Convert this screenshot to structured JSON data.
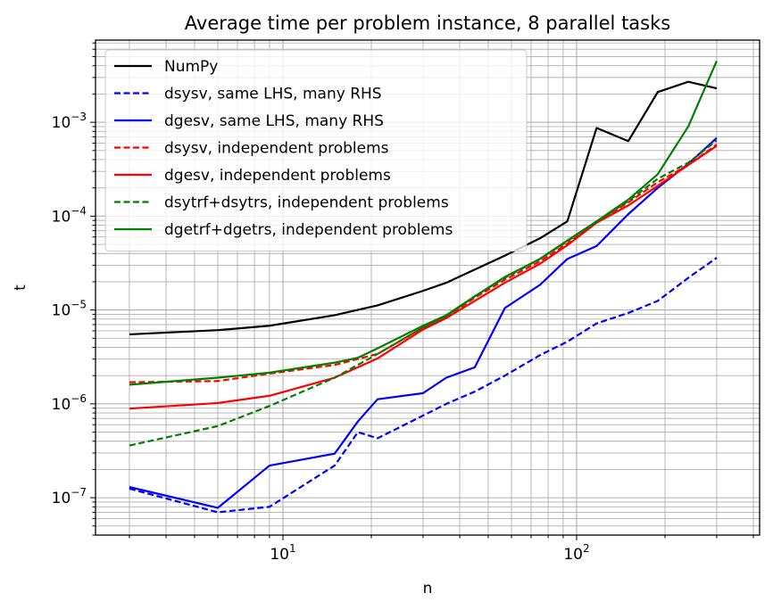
{
  "chart_data": {
    "type": "line",
    "title": "Average time per problem instance, 8 parallel tasks",
    "xlabel": "n",
    "ylabel": "t",
    "xscale": "log",
    "yscale": "log",
    "xlim": [
      2.3,
      420
    ],
    "ylim": [
      4e-08,
      0.0075
    ],
    "grid": "major and minor",
    "legend_position": "top-left",
    "x_ticks": [
      {
        "value": 10,
        "base": "10",
        "exp": "1"
      },
      {
        "value": 100,
        "base": "10",
        "exp": "2"
      }
    ],
    "y_ticks": [
      {
        "value": 1e-07,
        "base": "10",
        "exp": "−7"
      },
      {
        "value": 1e-06,
        "base": "10",
        "exp": "−6"
      },
      {
        "value": 1e-05,
        "base": "10",
        "exp": "−5"
      },
      {
        "value": 0.0001,
        "base": "10",
        "exp": "−4"
      },
      {
        "value": 0.001,
        "base": "10",
        "exp": "−3"
      }
    ],
    "series": [
      {
        "name": "NumPy",
        "color": "#000000",
        "dash": "solid",
        "points": [
          [
            3,
            5.5e-06
          ],
          [
            6,
            6.1e-06
          ],
          [
            9,
            6.8e-06
          ],
          [
            15,
            8.8e-06
          ],
          [
            21,
            1.12e-05
          ],
          [
            30,
            1.6e-05
          ],
          [
            36,
            1.95e-05
          ],
          [
            45,
            2.7e-05
          ],
          [
            57,
            3.8e-05
          ],
          [
            75,
            5.8e-05
          ],
          [
            93,
            8.8e-05
          ],
          [
            117,
            0.00087
          ],
          [
            150,
            0.00063
          ],
          [
            189,
            0.0021
          ],
          [
            240,
            0.0027
          ],
          [
            300,
            0.0023
          ]
        ]
      },
      {
        "name": "dsysv, same LHS, many RHS",
        "color": "#0000ff",
        "dash": "dashed",
        "points": [
          [
            3,
            1.25e-07
          ],
          [
            6,
            7e-08
          ],
          [
            9,
            8e-08
          ],
          [
            15,
            2.2e-07
          ],
          [
            18,
            5e-07
          ],
          [
            21,
            4.3e-07
          ],
          [
            30,
            7.5e-07
          ],
          [
            36,
            1e-06
          ],
          [
            45,
            1.35e-06
          ],
          [
            57,
            2e-06
          ],
          [
            75,
            3.3e-06
          ],
          [
            93,
            4.6e-06
          ],
          [
            117,
            7.2e-06
          ],
          [
            150,
            9.3e-06
          ],
          [
            189,
            1.25e-05
          ],
          [
            240,
            2.2e-05
          ],
          [
            300,
            3.6e-05
          ]
        ]
      },
      {
        "name": "dgesv, same LHS, many RHS",
        "color": "#0000ff",
        "dash": "solid",
        "points": [
          [
            3,
            1.3e-07
          ],
          [
            6,
            7.8e-08
          ],
          [
            9,
            2.2e-07
          ],
          [
            15,
            2.95e-07
          ],
          [
            18,
            6.5e-07
          ],
          [
            21,
            1.12e-06
          ],
          [
            30,
            1.3e-06
          ],
          [
            36,
            1.9e-06
          ],
          [
            45,
            2.45e-06
          ],
          [
            57,
            1.05e-05
          ],
          [
            75,
            1.85e-05
          ],
          [
            93,
            3.5e-05
          ],
          [
            117,
            4.8e-05
          ],
          [
            150,
            0.000105
          ],
          [
            189,
            0.0002
          ],
          [
            240,
            0.00036
          ],
          [
            300,
            0.00068
          ]
        ]
      },
      {
        "name": "dsysv, independent problems",
        "color": "#ff0000",
        "dash": "dashed",
        "points": [
          [
            3,
            1.7e-06
          ],
          [
            6,
            1.75e-06
          ],
          [
            9,
            2.1e-06
          ],
          [
            15,
            2.6e-06
          ],
          [
            21,
            3.4e-06
          ],
          [
            30,
            6.5e-06
          ],
          [
            36,
            8.4e-06
          ],
          [
            45,
            1.35e-05
          ],
          [
            57,
            2.1e-05
          ],
          [
            75,
            3.3e-05
          ],
          [
            93,
            5.1e-05
          ],
          [
            117,
            8.6e-05
          ],
          [
            150,
            0.00014
          ],
          [
            189,
            0.00023
          ],
          [
            240,
            0.00035
          ],
          [
            300,
            0.00058
          ]
        ]
      },
      {
        "name": "dgesv, independent problems",
        "color": "#ff0000",
        "dash": "solid",
        "points": [
          [
            3,
            8.9e-07
          ],
          [
            6,
            1.02e-06
          ],
          [
            9,
            1.22e-06
          ],
          [
            15,
            1.9e-06
          ],
          [
            21,
            3.05e-06
          ],
          [
            30,
            6.2e-06
          ],
          [
            36,
            8.2e-06
          ],
          [
            45,
            1.25e-05
          ],
          [
            57,
            1.95e-05
          ],
          [
            75,
            3.1e-05
          ],
          [
            93,
            4.9e-05
          ],
          [
            117,
            8.5e-05
          ],
          [
            150,
            0.00013
          ],
          [
            189,
            0.00021
          ],
          [
            240,
            0.00035
          ],
          [
            300,
            0.00056
          ]
        ]
      },
      {
        "name": "dsytrf+dsytrs, independent problems",
        "color": "#008000",
        "dash": "dashed",
        "points": [
          [
            3,
            3.6e-07
          ],
          [
            6,
            5.8e-07
          ],
          [
            9,
            9.5e-07
          ],
          [
            15,
            1.9e-06
          ],
          [
            21,
            3.4e-06
          ],
          [
            30,
            6.5e-06
          ],
          [
            36,
            8.6e-06
          ],
          [
            45,
            1.4e-05
          ],
          [
            57,
            2.2e-05
          ],
          [
            75,
            3.5e-05
          ],
          [
            93,
            5.4e-05
          ],
          [
            117,
            8.7e-05
          ],
          [
            150,
            0.000145
          ],
          [
            189,
            0.00025
          ],
          [
            240,
            0.00037
          ],
          [
            300,
            0.00064
          ]
        ]
      },
      {
        "name": "dgetrf+dgetrs, independent problems",
        "color": "#008000",
        "dash": "solid",
        "points": [
          [
            3,
            1.6e-06
          ],
          [
            6,
            1.9e-06
          ],
          [
            9,
            2.15e-06
          ],
          [
            15,
            2.75e-06
          ],
          [
            18,
            3.1e-06
          ],
          [
            21,
            3.9e-06
          ],
          [
            30,
            6.8e-06
          ],
          [
            36,
            8.8e-06
          ],
          [
            45,
            1.4e-05
          ],
          [
            57,
            2.25e-05
          ],
          [
            75,
            3.5e-05
          ],
          [
            93,
            5.5e-05
          ],
          [
            117,
            8.8e-05
          ],
          [
            150,
            0.00015
          ],
          [
            189,
            0.00028
          ],
          [
            240,
            0.0009
          ],
          [
            300,
            0.0045
          ]
        ]
      }
    ]
  }
}
